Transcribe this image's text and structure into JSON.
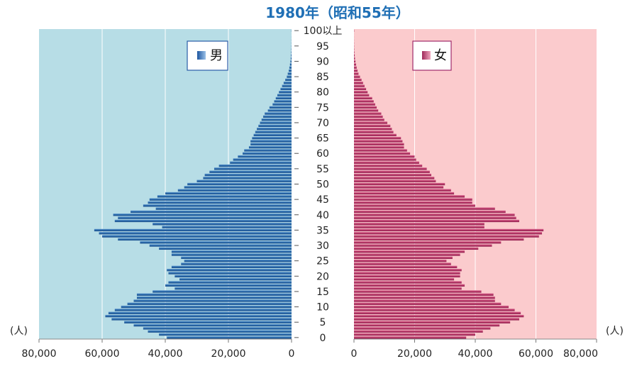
{
  "chart_data": [
    {
      "type": "bar",
      "title": "1980年（昭和55年）",
      "colors": {
        "male_bg": "#b7dde6",
        "female_bg": "#fbcbcd",
        "male_bar": "#2e6fb0",
        "female_bar": "#c0406e",
        "title": "#1f6fb5",
        "male_legend_border": "#2a5ea8",
        "female_legend_border": "#a02a6a"
      },
      "age_axis": {
        "range": [
          0,
          100
        ],
        "tick_values": [
          0,
          5,
          10,
          15,
          20,
          25,
          30,
          35,
          40,
          45,
          50,
          55,
          60,
          65,
          70,
          75,
          80,
          85,
          90,
          95,
          100
        ],
        "tick_labels": [
          "0",
          "5",
          "10",
          "15",
          "20",
          "25",
          "30",
          "35",
          "40",
          "45",
          "50",
          "55",
          "60",
          "65",
          "70",
          "75",
          "80",
          "85",
          "90",
          "95",
          "100以上"
        ]
      },
      "x_unit_left": "(人)",
      "x_unit_right": "(人)",
      "series": [
        {
          "name": "男",
          "side": "left",
          "xlim": [
            0,
            80000
          ],
          "x_tick_values": [
            80000,
            60000,
            40000,
            20000,
            0
          ],
          "x_tick_labels": [
            "80,000",
            "60,000",
            "40,000",
            "20,000",
            "0"
          ],
          "values": [
            39500,
            42000,
            45500,
            47000,
            50000,
            53000,
            57000,
            59000,
            58000,
            56000,
            54000,
            52000,
            50000,
            49000,
            49000,
            44000,
            37000,
            40000,
            39000,
            35500,
            37000,
            39000,
            39500,
            38000,
            35000,
            34000,
            35000,
            38000,
            38000,
            42000,
            45000,
            48000,
            55000,
            60000,
            61000,
            62500,
            41000,
            44000,
            56000,
            55000,
            56500,
            51000,
            43000,
            47000,
            45500,
            45000,
            42500,
            40000,
            36000,
            34000,
            33000,
            30000,
            28000,
            27500,
            26000,
            24500,
            23000,
            19500,
            18500,
            17000,
            15500,
            15000,
            13500,
            13000,
            13000,
            12500,
            12000,
            11500,
            11000,
            10500,
            10000,
            9500,
            9000,
            8500,
            7500,
            7000,
            6000,
            5500,
            5000,
            4500,
            4000,
            3500,
            3000,
            2500,
            2000,
            1500,
            1200,
            900,
            700,
            500,
            350,
            250,
            180,
            120,
            80,
            60,
            40,
            30,
            20,
            10,
            50
          ]
        },
        {
          "name": "女",
          "side": "right",
          "xlim": [
            0,
            80000
          ],
          "x_tick_values": [
            0,
            20000,
            40000,
            60000,
            80000
          ],
          "x_tick_labels": [
            "0",
            "20,000",
            "40,000",
            "60,000",
            "80,000"
          ],
          "values": [
            37000,
            40000,
            42500,
            45000,
            48000,
            51500,
            54500,
            56000,
            55000,
            53000,
            51000,
            48500,
            46500,
            46500,
            46000,
            42000,
            35500,
            36500,
            35500,
            33000,
            35000,
            35000,
            35500,
            34000,
            32000,
            30500,
            32500,
            35000,
            36500,
            41000,
            45500,
            48500,
            56000,
            61000,
            62000,
            62500,
            43000,
            43000,
            54500,
            53500,
            53000,
            50000,
            46500,
            40000,
            39000,
            39000,
            36500,
            33000,
            32000,
            29500,
            30000,
            27000,
            26500,
            25500,
            25000,
            24000,
            22500,
            21500,
            20500,
            20000,
            18500,
            17500,
            16500,
            16500,
            16000,
            15500,
            14000,
            13000,
            12500,
            12000,
            11000,
            10000,
            9500,
            9000,
            8000,
            7500,
            7000,
            6500,
            6000,
            5000,
            4500,
            4000,
            3500,
            3000,
            2500,
            2000,
            1500,
            1200,
            900,
            700,
            500,
            350,
            250,
            150,
            100,
            70,
            50,
            30,
            20,
            10,
            80
          ]
        }
      ]
    }
  ]
}
